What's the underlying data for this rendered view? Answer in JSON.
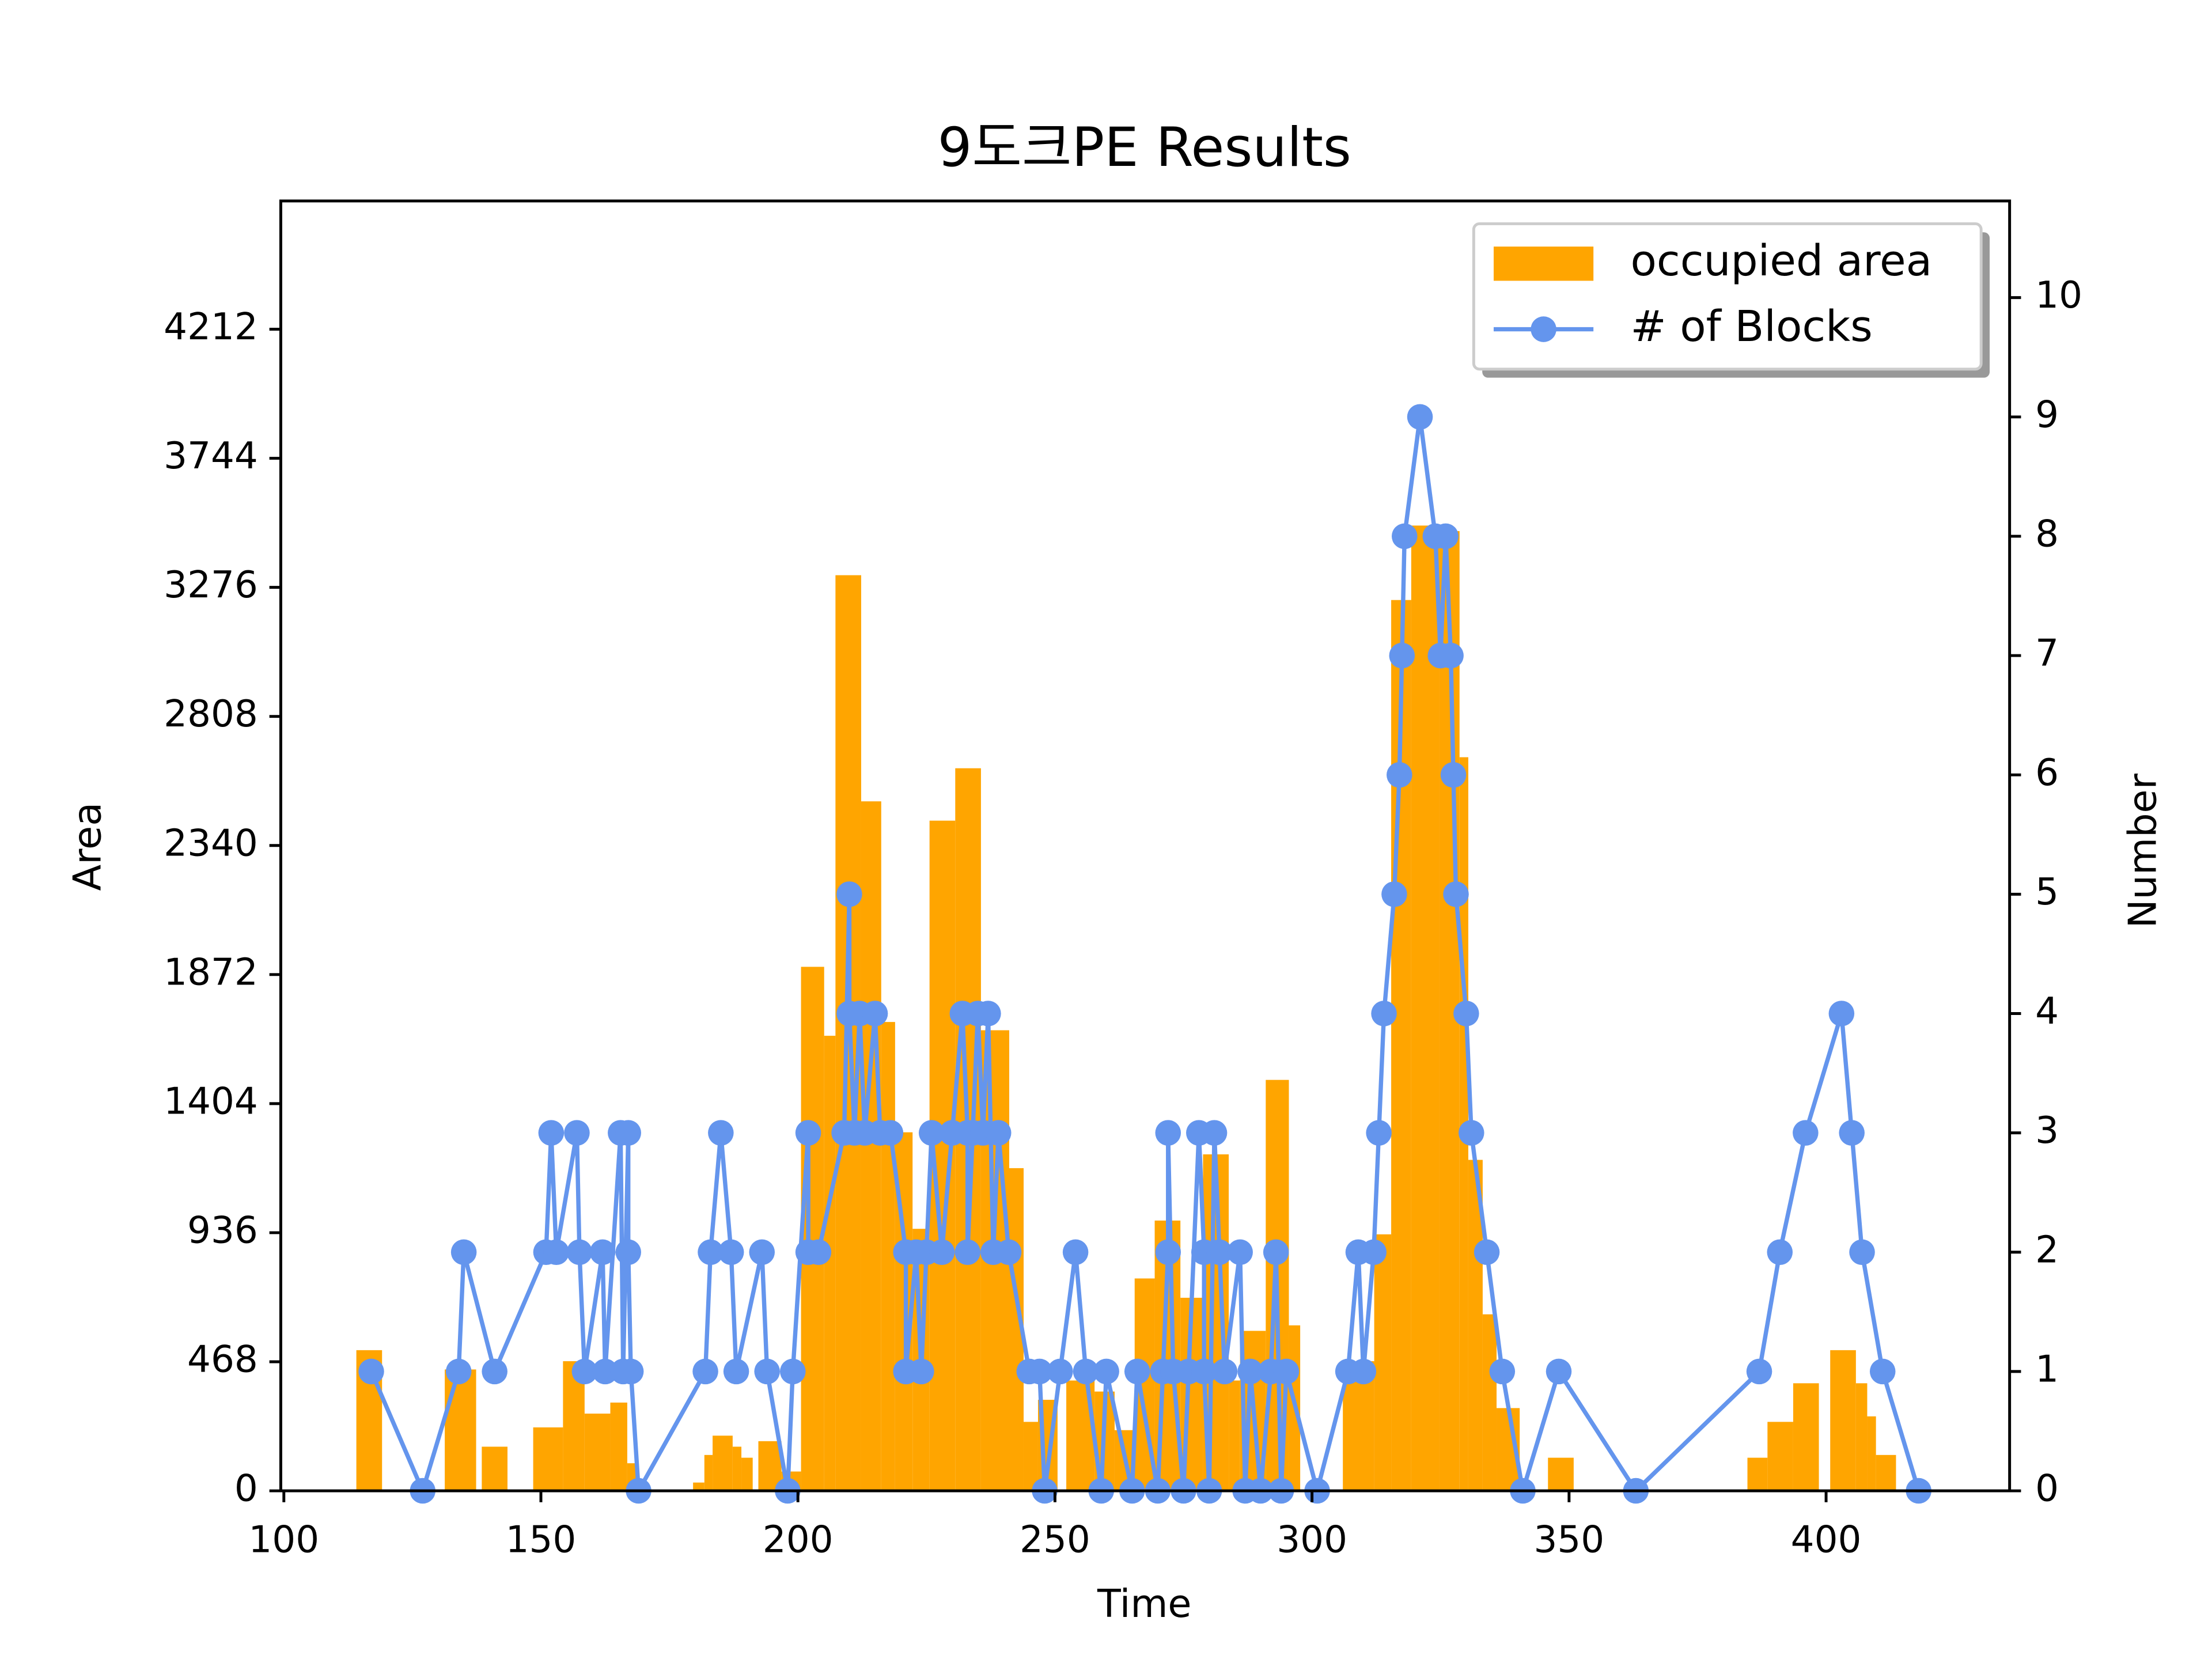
{
  "chart_data": {
    "type": "histogram",
    "title": "9도크PE Results",
    "xlabel": "Time",
    "ylabel": "Area",
    "y2label": "Number",
    "bins": [
      114.1,
      119.1,
      131.3,
      137.4,
      138.5,
      143.5,
      148.5,
      154.3,
      158.5,
      163.5,
      166.8,
      169.0,
      179.6,
      181.8,
      183.4,
      187.3,
      189.0,
      191.2,
      192.3,
      196.8,
      200.6,
      205.1,
      207.3,
      212.3,
      216.2,
      218.9,
      222.3,
      225.6,
      230.6,
      235.6,
      241.1,
      243.9,
      246.7,
      250.5,
      252.2,
      257.7,
      261.6,
      265.5,
      269.4,
      274.4,
      278.8,
      283.8,
      286.0,
      291.0,
      295.5,
      297.7,
      306.0,
      312.1,
      315.4,
      319.3,
      324.8,
      328.7,
      330.4,
      333.2,
      335.9,
      340.4,
      345.9,
      350.9,
      384.7,
      388.6,
      393.6,
      398.6,
      400.8,
      405.8,
      408.0,
      409.7,
      413.6
    ],
    "series": [
      {
        "name": "occupied area",
        "color": "#ffa500",
        "values": [
          510,
          0,
          440,
          0,
          160,
          0,
          230,
          470,
          280,
          320,
          100,
          0,
          30,
          130,
          200,
          160,
          120,
          0,
          180,
          70,
          1900,
          1650,
          3320,
          2500,
          1700,
          1300,
          950,
          2430,
          2620,
          1670,
          1170,
          250,
          330,
          0,
          400,
          360,
          220,
          770,
          980,
          700,
          1220,
          400,
          580,
          1490,
          600,
          0,
          470,
          930,
          3230,
          3500,
          3480,
          2660,
          1200,
          640,
          300,
          0,
          120,
          0,
          120,
          250,
          390,
          0,
          510,
          390,
          270,
          130
        ]
      },
      {
        "name": "# of Blocks",
        "color": "#6495ed",
        "type": "line",
        "axis": "y2",
        "x": [
          117,
          127,
          134,
          135,
          141,
          151,
          152,
          153,
          157,
          157.5,
          158.5,
          162,
          162.5,
          165.5,
          166,
          167,
          167,
          167.5,
          169,
          182,
          183,
          185,
          187,
          188,
          193,
          194,
          198,
          199,
          202,
          202,
          204,
          209,
          210,
          210,
          211,
          212,
          213,
          215,
          216,
          218,
          221,
          221,
          223,
          224,
          225,
          226,
          228,
          230,
          232,
          233,
          233,
          234,
          235,
          236,
          237,
          238,
          239,
          241,
          245,
          247,
          248,
          251,
          254,
          256,
          259,
          260,
          265,
          266,
          270,
          271,
          272,
          272,
          273,
          275,
          276,
          278,
          279,
          279,
          280,
          281,
          282,
          283,
          286,
          287,
          288,
          290,
          292,
          293,
          294,
          295,
          301,
          307,
          309,
          310,
          312,
          313,
          314,
          316,
          317,
          317.5,
          318,
          321,
          324,
          325,
          326,
          327,
          327.5,
          328,
          330,
          331,
          334,
          337,
          341,
          348,
          363,
          387,
          391,
          396,
          403,
          405,
          407,
          411,
          418
        ],
        "values": [
          1,
          0,
          1,
          2,
          1,
          2,
          3,
          2,
          3,
          2,
          1,
          2,
          1,
          3,
          1,
          3,
          2,
          1,
          0,
          1,
          2,
          3,
          2,
          1,
          2,
          1,
          0,
          1,
          3,
          2,
          2,
          3,
          5,
          4,
          3,
          4,
          3,
          4,
          3,
          3,
          2,
          1,
          2,
          1,
          2,
          3,
          2,
          3,
          4,
          3,
          2,
          3,
          4,
          3,
          4,
          2,
          3,
          2,
          1,
          1,
          0,
          1,
          2,
          1,
          0,
          1,
          0,
          1,
          0,
          1,
          2,
          3,
          1,
          0,
          1,
          3,
          2,
          1,
          0,
          3,
          2,
          1,
          2,
          0,
          1,
          0,
          1,
          2,
          0,
          1,
          0,
          1,
          2,
          1,
          2,
          3,
          4,
          5,
          6,
          7,
          8,
          9,
          8,
          7,
          8,
          7,
          6,
          5,
          4,
          3,
          2,
          1,
          0,
          1,
          0,
          1,
          2,
          3,
          4,
          3,
          2,
          1,
          0
        ]
      }
    ],
    "xlim": [
      99.4,
      435.7
    ],
    "xticks": [
      100,
      150,
      200,
      250,
      300,
      350,
      400
    ],
    "ylim": [
      0,
      4677
    ],
    "yticks": [
      0,
      468,
      936,
      1404,
      1872,
      2340,
      2808,
      3276,
      3744,
      4212
    ],
    "y2lim": [
      0,
      10.81
    ],
    "y2ticks": [
      0,
      1,
      2,
      3,
      4,
      5,
      6,
      7,
      8,
      9,
      10
    ],
    "legend": "upper right"
  }
}
